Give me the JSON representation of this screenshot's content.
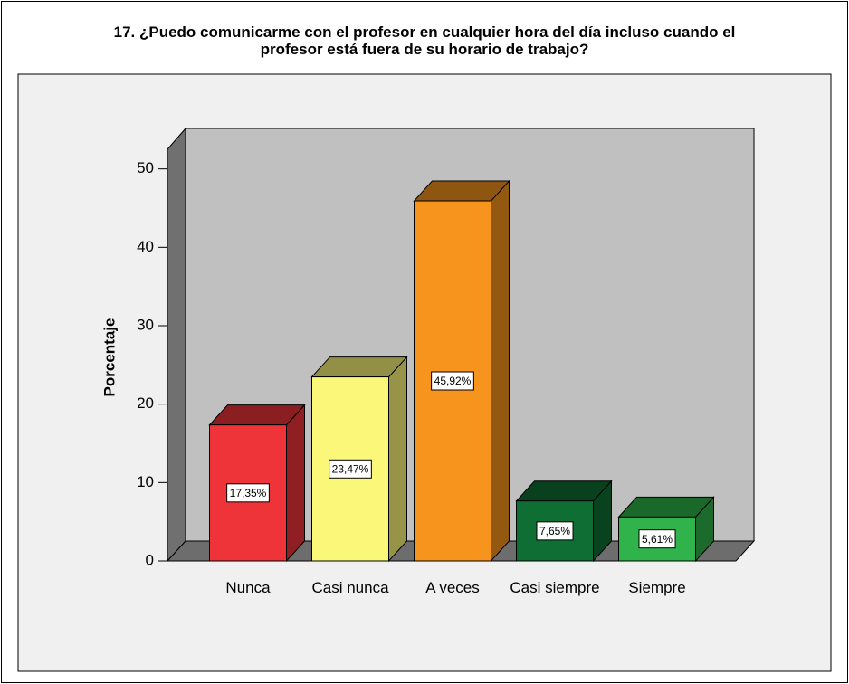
{
  "chart_data": {
    "type": "bar3d",
    "title": "17. ¿Puedo comunicarme con el profesor en cualquier hora del día incluso cuando el\nprofesor está fuera de su horario de trabajo?",
    "ylabel": "Porcentaje",
    "categories": [
      "Nunca",
      "Casi nunca",
      "A veces",
      "Casi siempre",
      "Siempre"
    ],
    "values": [
      17.35,
      23.47,
      45.92,
      7.65,
      5.61
    ],
    "value_labels": [
      "17,35%",
      "23,47%",
      "45,92%",
      "7,65%",
      "5,61%"
    ],
    "colors": [
      "#ee3438",
      "#fbf779",
      "#f7941d",
      "#0f6e33",
      "#2fb34a"
    ],
    "ylim": [
      0,
      52.5
    ],
    "yticks": [
      0,
      10,
      20,
      30,
      40,
      50
    ]
  }
}
